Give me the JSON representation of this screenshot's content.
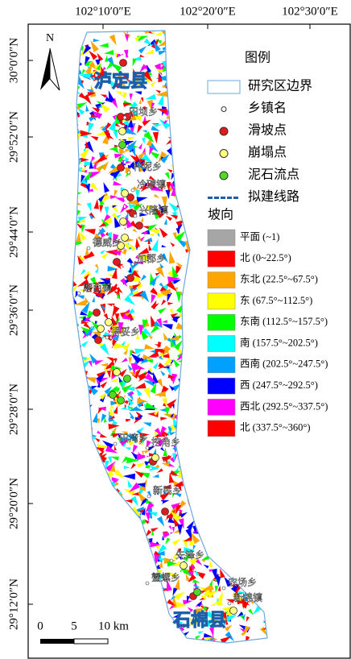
{
  "axes": {
    "top": [
      "102°10′0″E",
      "102°20′0″E",
      "102°30′0″E"
    ],
    "left": [
      "30°0′0″N",
      "29°52′0″N",
      "29°44′0″N",
      "29°36′0″N",
      "29°28′0″N",
      "29°20′0″N",
      "29°12′0″N"
    ]
  },
  "north": "N",
  "counties": [
    "泸定县",
    "石棉县"
  ],
  "towns": [
    "田坝乡",
    "杵坭乡",
    "冷碛镇",
    "兴隆镇",
    "德威乡",
    "加郡乡",
    "磨西镇",
    "得妥乡",
    "田湾乡",
    "挖角乡",
    "新民乡",
    "先锋乡",
    "蟹螺乡",
    "农场乡",
    "新棉镇"
  ],
  "legend": {
    "title": "图例",
    "items": [
      "研究区边界",
      "乡镇名",
      "滑坡点",
      "崩塌点",
      "泥石流点",
      "拟建线路"
    ]
  },
  "aspect": {
    "title": "坡向",
    "classes": [
      {
        "label": "平面 (~1)",
        "color": "#a6a6a6"
      },
      {
        "label": "北 (0~22.5°)",
        "color": "#ff0000"
      },
      {
        "label": "东北 (22.5°~67.5°)",
        "color": "#ffa500"
      },
      {
        "label": "东 (67.5°~112.5°)",
        "color": "#ffff00"
      },
      {
        "label": "东南 (112.5°~157.5°)",
        "color": "#00ff00"
      },
      {
        "label": "南 (157.5°~202.5°)",
        "color": "#00ffff"
      },
      {
        "label": "西南 (202.5°~247.5°)",
        "color": "#00a0ff"
      },
      {
        "label": "西 (247.5°~292.5°)",
        "color": "#0000ff"
      },
      {
        "label": "西北 (292.5°~337.5°)",
        "color": "#ff00ff"
      },
      {
        "label": "北 (337.5°~360°)",
        "color": "#ff0000"
      }
    ]
  },
  "scale": {
    "labels": [
      "0",
      "5",
      "10 km"
    ]
  }
}
